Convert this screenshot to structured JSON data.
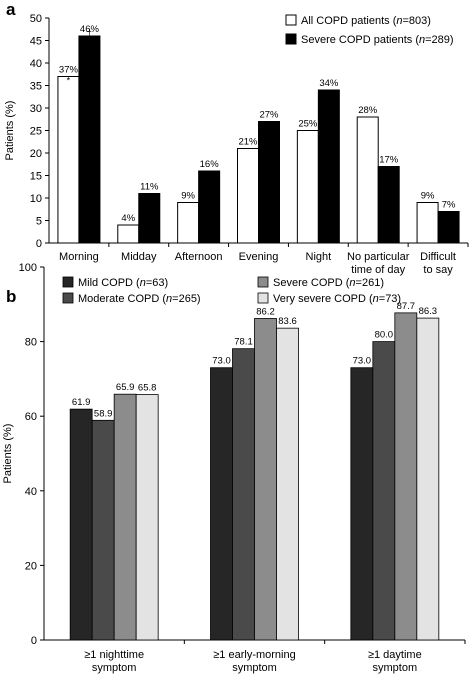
{
  "panels": {
    "a": {
      "letter": "a"
    },
    "b": {
      "letter": "b"
    }
  },
  "chart_data": [
    {
      "type": "bar",
      "panel": "a",
      "ylabel": "Patients (%)",
      "ylim": [
        0,
        50
      ],
      "yticks": [
        0,
        5,
        10,
        15,
        20,
        25,
        30,
        35,
        40,
        45,
        50
      ],
      "categories": [
        [
          "Morning"
        ],
        [
          "Midday"
        ],
        [
          "Afternoon"
        ],
        [
          "Evening"
        ],
        [
          "Night"
        ],
        [
          "No particular",
          "time of day"
        ],
        [
          "Difficult",
          "to say"
        ]
      ],
      "series": [
        {
          "name_parts": [
            "All COPD patients (",
            "n",
            "=803)"
          ],
          "color": "#ffffff",
          "values": [
            37,
            4,
            9,
            21,
            25,
            28,
            9
          ],
          "labels": [
            "37%",
            "4%",
            "9%",
            "21%",
            "25%",
            "28%",
            "9%"
          ]
        },
        {
          "name_parts": [
            "Severe COPD patients (",
            "n",
            "=289)"
          ],
          "color": "#000000",
          "values": [
            46,
            11,
            16,
            27,
            34,
            17,
            7
          ],
          "labels": [
            "46%",
            "11%",
            "16%",
            "27%",
            "34%",
            "17%",
            "7%"
          ]
        }
      ],
      "annotations": [
        {
          "series": 0,
          "category": 0,
          "text": "*"
        },
        {
          "series": 1,
          "category": 0,
          "text": "†"
        }
      ],
      "grid": false,
      "legend": "top-right"
    },
    {
      "type": "bar",
      "panel": "b",
      "ylabel": "Patients (%)",
      "ylim": [
        0,
        100
      ],
      "yticks": [
        0,
        20,
        40,
        60,
        80,
        100
      ],
      "categories": [
        [
          "≥1 nighttime",
          "symptom"
        ],
        [
          "≥1 early-morning",
          "symptom"
        ],
        [
          "≥1 daytime",
          "symptom"
        ]
      ],
      "series": [
        {
          "name_parts": [
            "Mild COPD (",
            "n",
            "=63)"
          ],
          "color": "#262626",
          "values": [
            61.9,
            73.0,
            73.0
          ],
          "labels": [
            "61.9",
            "73.0",
            "73.0"
          ]
        },
        {
          "name_parts": [
            "Moderate COPD (",
            "n",
            "=265)"
          ],
          "color": "#4a4a4a",
          "values": [
            58.9,
            78.1,
            80.0
          ],
          "labels": [
            "58.9",
            "78.1",
            "80.0"
          ]
        },
        {
          "name_parts": [
            "Severe COPD (",
            "n",
            "=261)"
          ],
          "color": "#8c8c8c",
          "values": [
            65.9,
            86.2,
            87.7
          ],
          "labels": [
            "65.9",
            "86.2",
            "87.7"
          ]
        },
        {
          "name_parts": [
            "Very severe COPD (",
            "n",
            "=73)"
          ],
          "color": "#e3e3e3",
          "values": [
            65.8,
            83.6,
            86.3
          ],
          "labels": [
            "65.8",
            "83.6",
            "86.3"
          ]
        }
      ],
      "grid": false,
      "legend": "top"
    }
  ]
}
